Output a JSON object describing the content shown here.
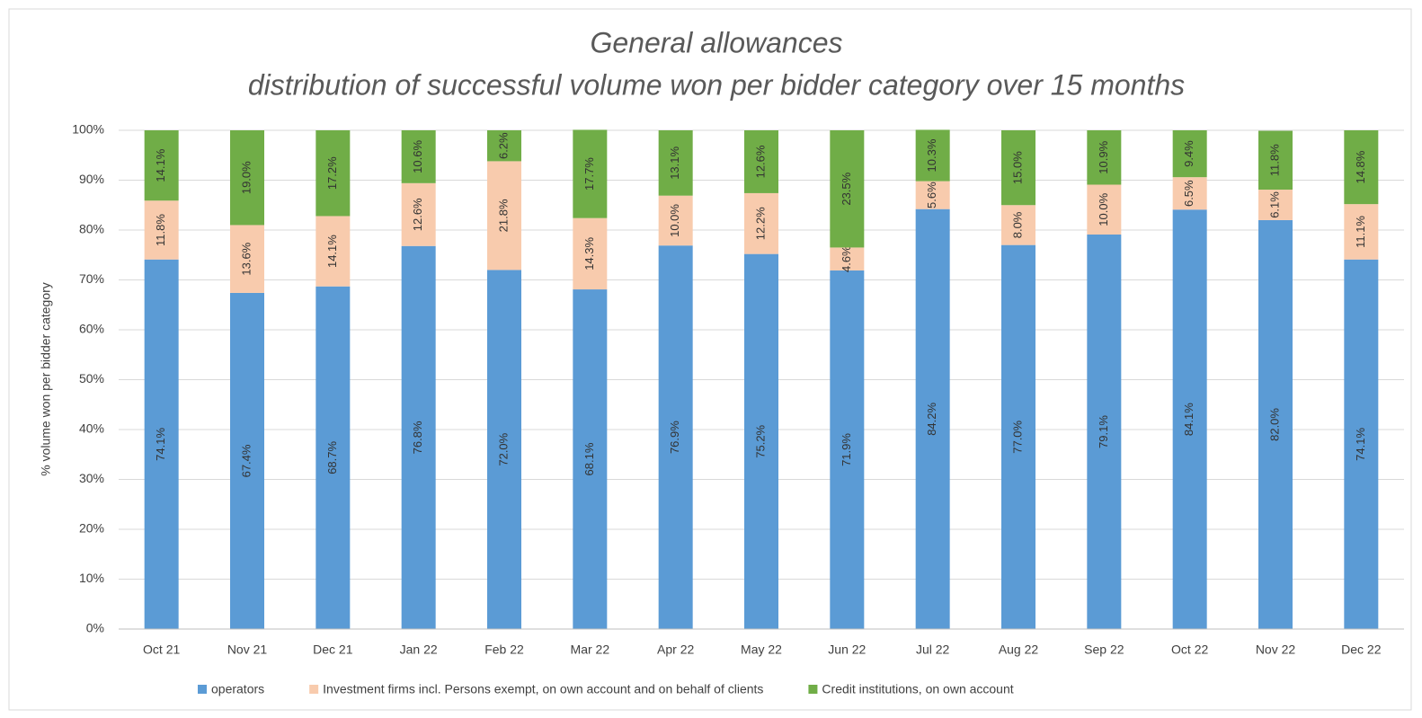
{
  "chart_data": {
    "type": "stacked_bar",
    "title": "General allowances",
    "subtitle": "distribution of successful volume won per bidder category over 15 months",
    "y_label": "% volume won per bidder category",
    "categories": [
      "Oct 21",
      "Nov 21",
      "Dec 21",
      "Jan 22",
      "Feb 22",
      "Mar 22",
      "Apr 22",
      "May 22",
      "Jun 22",
      "Jul 22",
      "Aug 22",
      "Sep 22",
      "Oct 22",
      "Nov 22",
      "Dec 22"
    ],
    "series": [
      {
        "name": "operators",
        "color": "#5b9bd5",
        "values": [
          74.1,
          67.4,
          68.7,
          76.8,
          72.0,
          68.1,
          76.9,
          75.2,
          71.9,
          84.2,
          77.0,
          79.1,
          84.1,
          82.0,
          74.1
        ],
        "value_labels": [
          "74.1%",
          "67.4%",
          "68.7%",
          "76.8%",
          "72.0%",
          "68.1%",
          "76.9%",
          "75.2%",
          "71.9%",
          "84.2%",
          "77.0%",
          "79.1%",
          "84.1%",
          "82.0%",
          "74.1%"
        ]
      },
      {
        "name": "Investment firms incl. Persons exempt, on own account and on behalf of clients",
        "color": "#f8cbad",
        "values": [
          11.8,
          13.6,
          14.1,
          12.6,
          21.8,
          14.3,
          10.0,
          12.2,
          4.6,
          5.6,
          8.0,
          10.0,
          6.5,
          6.1,
          11.1
        ],
        "value_labels": [
          "11.8%",
          "13.6%",
          "14.1%",
          "12.6%",
          "21.8%",
          "14.3%",
          "10.0%",
          "12.2%",
          "4.6%",
          "5.6%",
          "8.0%",
          "10.0%",
          "6.5%",
          "6.1%",
          "11.1%"
        ]
      },
      {
        "name": "Credit institutions, on own account",
        "color": "#70ad47",
        "values": [
          14.1,
          19.0,
          17.2,
          10.6,
          6.2,
          17.7,
          13.1,
          12.6,
          23.5,
          10.3,
          15.0,
          10.9,
          9.4,
          11.8,
          14.8
        ],
        "value_labels": [
          "14.1%",
          "19.0%",
          "17.2%",
          "10.6%",
          "6.2%",
          "17.7%",
          "13.1%",
          "12.6%",
          "23.5%",
          "10.3%",
          "15.0%",
          "10.9%",
          "9.4%",
          "11.8%",
          "14.8%"
        ]
      }
    ],
    "ylim": [
      0,
      100
    ],
    "yticks": [
      {
        "value": 0,
        "label": "0%"
      },
      {
        "value": 10,
        "label": "10%"
      },
      {
        "value": 20,
        "label": "20%"
      },
      {
        "value": 30,
        "label": "30%"
      },
      {
        "value": 40,
        "label": "40%"
      },
      {
        "value": 50,
        "label": "50%"
      },
      {
        "value": 60,
        "label": "60%"
      },
      {
        "value": 70,
        "label": "70%"
      },
      {
        "value": 80,
        "label": "80%"
      },
      {
        "value": 90,
        "label": "90%"
      },
      {
        "value": 100,
        "label": "100%"
      }
    ],
    "grid": true,
    "legend": "bottom"
  }
}
